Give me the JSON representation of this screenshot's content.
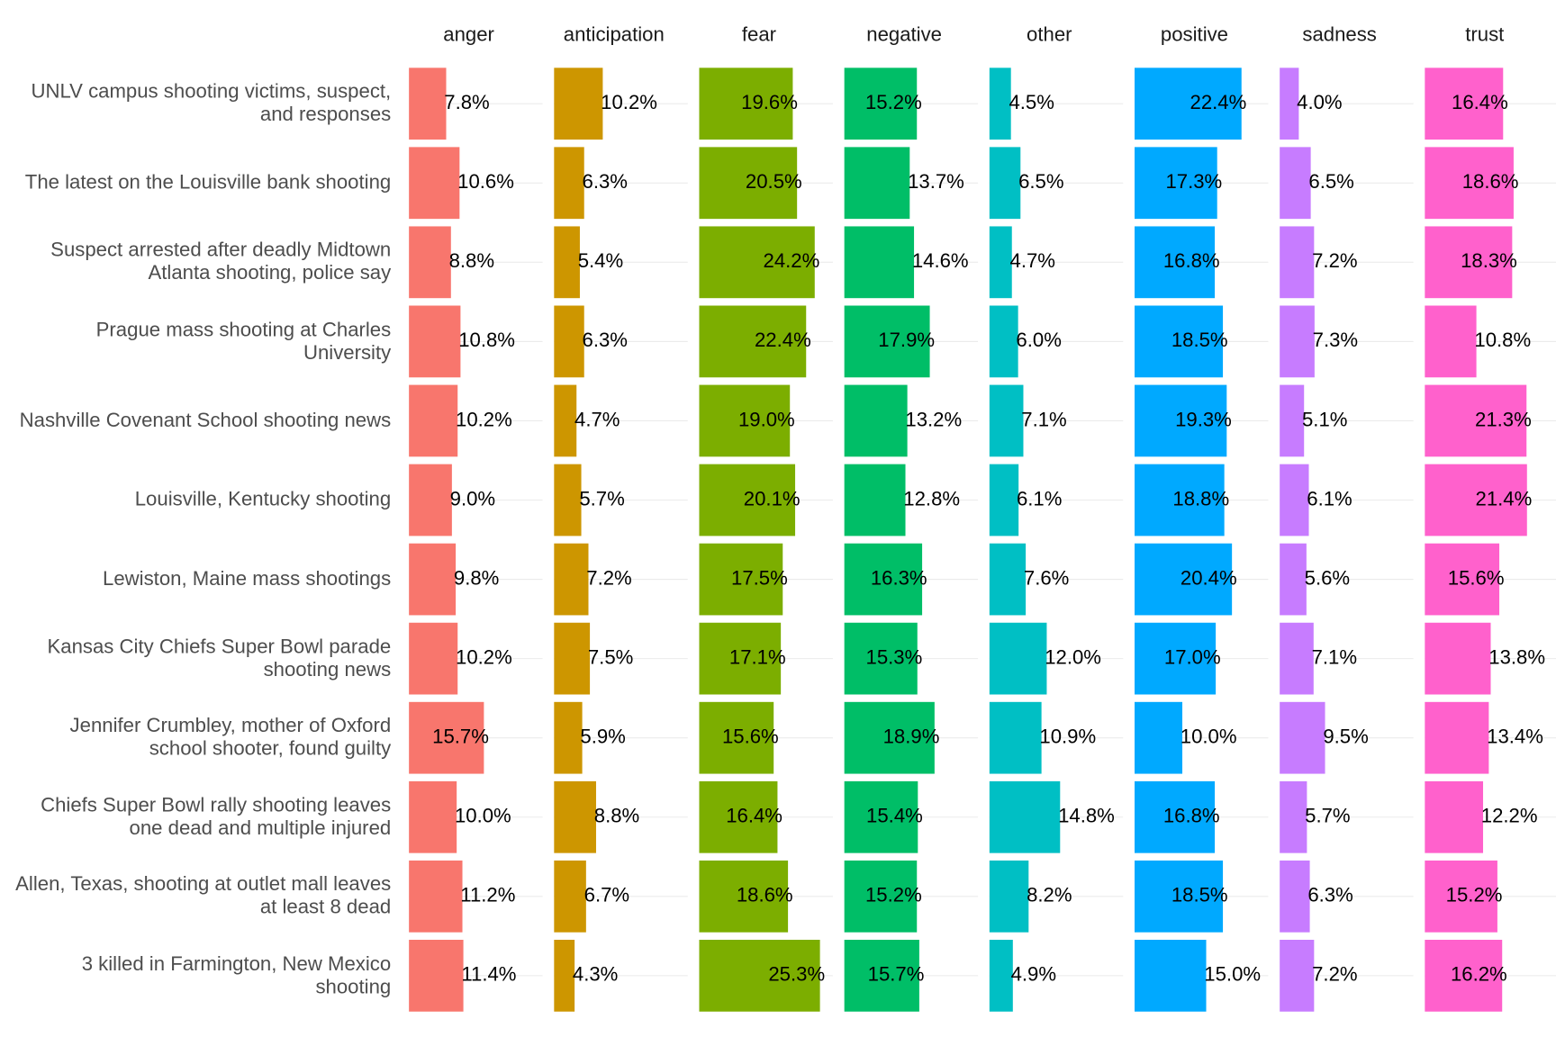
{
  "chart_data": {
    "type": "bar",
    "categories": [
      "UNLV campus shooting victims, suspect, and responses",
      "The latest on the Louisville bank shooting",
      "Suspect arrested after deadly Midtown Atlanta shooting, police say",
      "Prague mass shooting at Charles University",
      "Nashville Covenant School shooting news",
      "Louisville, Kentucky shooting",
      "Lewiston, Maine mass shootings",
      "Kansas City Chiefs Super Bowl parade shooting news",
      "Jennifer Crumbley, mother of Oxford school shooter, found guilty",
      "Chiefs Super Bowl rally shooting leaves one dead and multiple injured",
      "Allen, Texas, shooting at outlet mall leaves at least 8 dead",
      "3 killed in Farmington, New Mexico shooting"
    ],
    "xlim": [
      0,
      28
    ],
    "series": [
      {
        "name": "anger",
        "color": "#F8766D",
        "values": [
          7.8,
          10.6,
          8.8,
          10.8,
          10.2,
          9.0,
          9.8,
          10.2,
          15.7,
          10.0,
          11.2,
          11.4
        ],
        "value_labels": [
          "7.8%",
          "10.6%",
          "8.8%",
          "10.8%",
          "10.2%",
          "9.0%",
          "9.8%",
          "10.2%",
          "15.7%",
          "10.0%",
          "11.2%",
          "11.4%"
        ]
      },
      {
        "name": "anticipation",
        "color": "#CD9600",
        "values": [
          10.2,
          6.3,
          5.4,
          6.3,
          4.7,
          5.7,
          7.2,
          7.5,
          5.9,
          8.8,
          6.7,
          4.3
        ],
        "value_labels": [
          "10.2%",
          "6.3%",
          "5.4%",
          "6.3%",
          "4.7%",
          "5.7%",
          "7.2%",
          "7.5%",
          "5.9%",
          "8.8%",
          "6.7%",
          "4.3%"
        ]
      },
      {
        "name": "fear",
        "color": "#7CAE00",
        "values": [
          19.6,
          20.5,
          24.2,
          22.4,
          19.0,
          20.1,
          17.5,
          17.1,
          15.6,
          16.4,
          18.6,
          25.3
        ],
        "value_labels": [
          "19.6%",
          "20.5%",
          "24.2%",
          "22.4%",
          "19.0%",
          "20.1%",
          "17.5%",
          "17.1%",
          "15.6%",
          "16.4%",
          "18.6%",
          "25.3%"
        ]
      },
      {
        "name": "negative",
        "color": "#00BE67",
        "values": [
          15.2,
          13.7,
          14.6,
          17.9,
          13.2,
          12.8,
          16.3,
          15.3,
          18.9,
          15.4,
          15.2,
          15.7
        ],
        "value_labels": [
          "15.2%",
          "13.7%",
          "14.6%",
          "17.9%",
          "13.2%",
          "12.8%",
          "16.3%",
          "15.3%",
          "18.9%",
          "15.4%",
          "15.2%",
          "15.7%"
        ]
      },
      {
        "name": "other",
        "color": "#00BFC4",
        "values": [
          4.5,
          6.5,
          4.7,
          6.0,
          7.1,
          6.1,
          7.6,
          12.0,
          10.9,
          14.8,
          8.2,
          4.9
        ],
        "value_labels": [
          "4.5%",
          "6.5%",
          "4.7%",
          "6.0%",
          "7.1%",
          "6.1%",
          "7.6%",
          "12.0%",
          "10.9%",
          "14.8%",
          "8.2%",
          "4.9%"
        ]
      },
      {
        "name": "positive",
        "color": "#00A9FF",
        "values": [
          22.4,
          17.3,
          16.8,
          18.5,
          19.3,
          18.8,
          20.4,
          17.0,
          10.0,
          16.8,
          18.5,
          15.0
        ],
        "value_labels": [
          "22.4%",
          "17.3%",
          "16.8%",
          "18.5%",
          "19.3%",
          "18.8%",
          "20.4%",
          "17.0%",
          "10.0%",
          "16.8%",
          "18.5%",
          "15.0%"
        ]
      },
      {
        "name": "sadness",
        "color": "#C77CFF",
        "values": [
          4.0,
          6.5,
          7.2,
          7.3,
          5.1,
          6.1,
          5.6,
          7.1,
          9.5,
          5.7,
          6.3,
          7.2
        ],
        "value_labels": [
          "4.0%",
          "6.5%",
          "7.2%",
          "7.3%",
          "5.1%",
          "6.1%",
          "5.6%",
          "7.1%",
          "9.5%",
          "5.7%",
          "6.3%",
          "7.2%"
        ]
      },
      {
        "name": "trust",
        "color": "#FF61CC",
        "values": [
          16.4,
          18.6,
          18.3,
          10.8,
          21.3,
          21.4,
          15.6,
          13.8,
          13.4,
          12.2,
          15.2,
          16.2
        ],
        "value_labels": [
          "16.4%",
          "18.6%",
          "18.3%",
          "10.8%",
          "21.3%",
          "21.4%",
          "15.6%",
          "13.8%",
          "13.4%",
          "12.2%",
          "15.2%",
          "16.2%"
        ]
      }
    ]
  }
}
